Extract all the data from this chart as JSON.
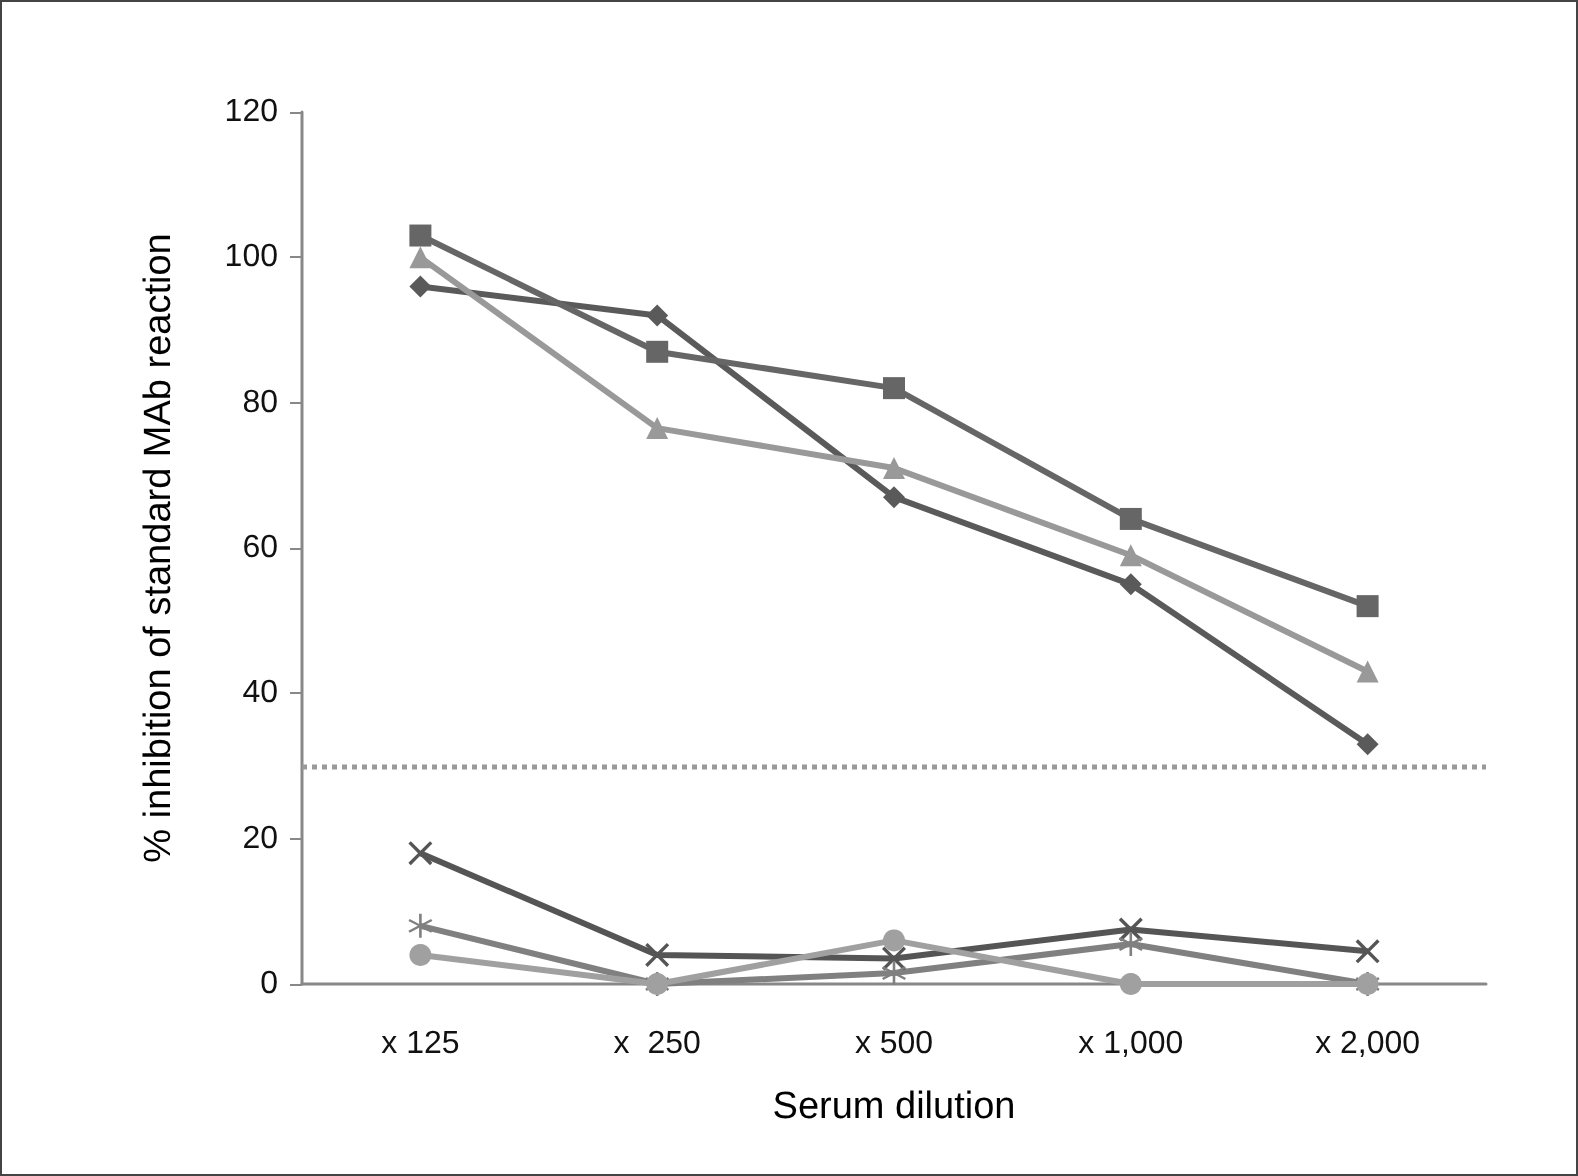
{
  "chart_data": {
    "type": "line",
    "xlabel": "Serum dilution",
    "ylabel": "% inhibition of standard MAb reaction",
    "categories": [
      "x 125",
      "x  250",
      "x 500",
      "x 1,000",
      "x 2,000"
    ],
    "series": [
      {
        "color": "#5a5a5a",
        "marker": "diamond",
        "values": [
          96,
          92,
          67,
          55,
          33
        ]
      },
      {
        "color": "#666666",
        "marker": "square",
        "values": [
          103,
          87,
          82,
          64,
          52
        ]
      },
      {
        "color": "#999999",
        "marker": "triangle",
        "values": [
          100,
          76.5,
          71,
          59,
          43
        ]
      },
      {
        "color": "#555555",
        "marker": "cross",
        "values": [
          18,
          4,
          3.5,
          7.5,
          4.5
        ]
      },
      {
        "color": "#808080",
        "marker": "star",
        "values": [
          8,
          0,
          1.5,
          5.5,
          0
        ]
      },
      {
        "color": "#a0a0a0",
        "marker": "circle",
        "values": [
          4,
          0,
          6,
          0,
          0
        ]
      }
    ],
    "ylim": [
      0,
      120
    ],
    "yticks": [
      0,
      20,
      40,
      60,
      80,
      100,
      120
    ],
    "ref_lines": [
      {
        "axis": "y",
        "value": 30,
        "color": "#999999",
        "line_style": "dotted"
      }
    ]
  }
}
